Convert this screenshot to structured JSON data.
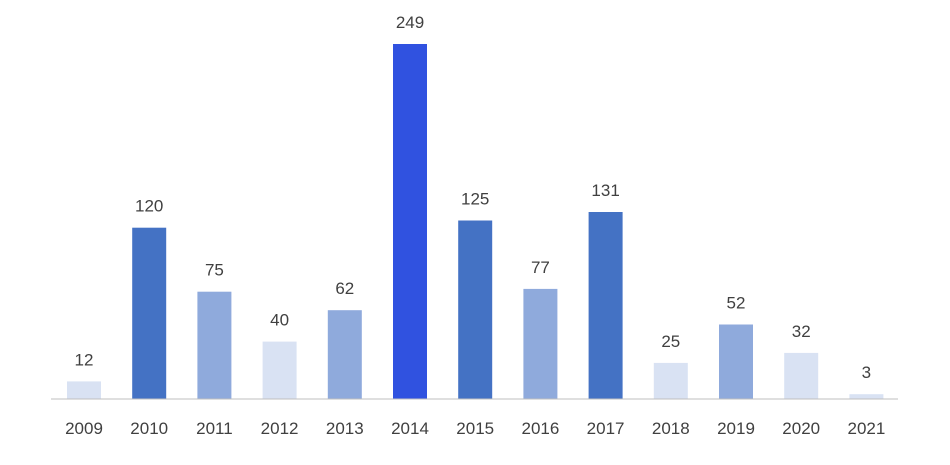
{
  "chart_data": {
    "type": "bar",
    "title": "",
    "xlabel": "",
    "ylabel": "",
    "categories": [
      "2009",
      "2010",
      "2011",
      "2012",
      "2013",
      "2014",
      "2015",
      "2016",
      "2017",
      "2018",
      "2019",
      "2020",
      "2021"
    ],
    "values": [
      12,
      120,
      75,
      40,
      62,
      249,
      125,
      77,
      131,
      25,
      52,
      32,
      3
    ],
    "value_labels": [
      "12",
      "120",
      "75",
      "40",
      "62",
      "249",
      "125",
      "77",
      "131",
      "25",
      "52",
      "32",
      "3"
    ],
    "ylim": [
      0,
      249
    ],
    "grid": false,
    "legend": "none",
    "bar_colors": [
      "#d9e2f3",
      "#4472c4",
      "#8faadc",
      "#d9e2f3",
      "#8faadc",
      "#3052e0",
      "#4472c4",
      "#8faadc",
      "#4472c4",
      "#d9e2f3",
      "#8faadc",
      "#d9e2f3",
      "#d9e2f3"
    ],
    "axis_color": "#bfbfbf",
    "text_color": "#404040"
  }
}
